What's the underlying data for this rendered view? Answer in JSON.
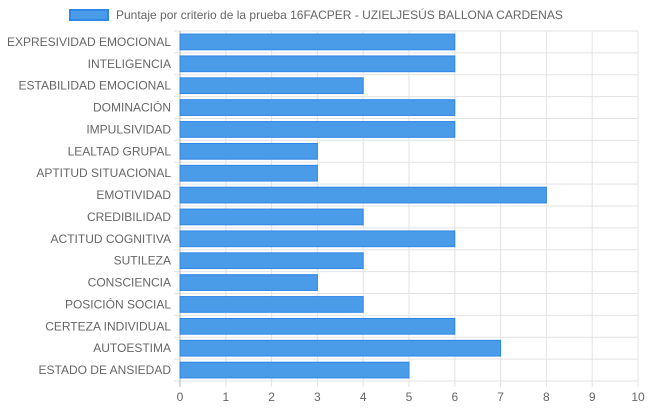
{
  "chart_data": {
    "type": "bar",
    "orientation": "horizontal",
    "categories": [
      "EXPRESIVIDAD EMOCIONAL",
      "INTELIGENCIA",
      "ESTABILIDAD EMOCIONAL",
      "DOMINACIÓN",
      "IMPULSIVIDAD",
      "LEALTAD GRUPAL",
      "APTITUD SITUACIONAL",
      "EMOTIVIDAD",
      "CREDIBILIDAD",
      "ACTITUD COGNITIVA",
      "SUTILEZA",
      "CONSCIENCIA",
      "POSICIÓN SOCIAL",
      "CERTEZA INDIVIDUAL",
      "AUTOESTIMA",
      "ESTADO DE ANSIEDAD"
    ],
    "series": [
      {
        "name": "Puntaje por criterio de la prueba 16FACPER - UZIELJESÚS BALLONA CARDENAS",
        "values": [
          6,
          6,
          4,
          6,
          6,
          3,
          3,
          8,
          4,
          6,
          4,
          3,
          4,
          6,
          7,
          5
        ]
      }
    ],
    "xlim": [
      0,
      10
    ],
    "xticks": [
      "0",
      "1",
      "2",
      "3",
      "4",
      "5",
      "6",
      "7",
      "8",
      "9",
      "10"
    ],
    "grid": true,
    "legend_position": "top",
    "colors": {
      "bar_fill": "#4a9be8",
      "bar_border": "#2f86e6",
      "grid": "#e3e3e3",
      "axis": "#b5b5b5",
      "text": "#666666"
    }
  }
}
